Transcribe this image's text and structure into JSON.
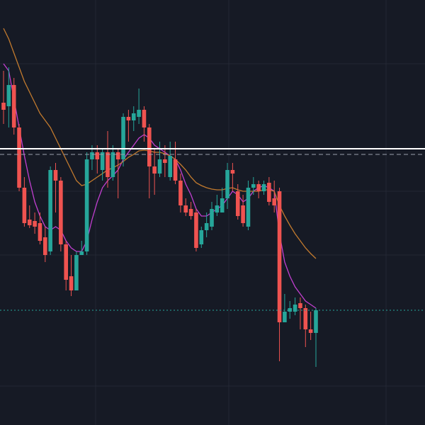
{
  "chart_data": {
    "type": "candlestick",
    "ylim": [
      0,
      600
    ],
    "up_color": "#26a69a",
    "down_color": "#ef5350",
    "open": [
      455,
      450,
      480,
      420,
      335,
      290,
      288,
      285,
      265,
      245,
      360,
      345,
      255,
      210,
      190,
      240,
      245,
      375,
      385,
      360,
      385,
      350,
      385,
      375,
      435,
      430,
      435,
      445,
      420,
      365,
      355,
      375,
      350,
      375,
      345,
      310,
      305,
      300,
      255,
      275,
      280,
      300,
      300,
      320,
      360,
      330,
      310,
      280,
      335,
      340,
      330,
      342,
      320,
      330,
      145,
      160,
      160,
      172,
      165,
      135,
      130
    ],
    "close": [
      445,
      480,
      420,
      335,
      285,
      282,
      280,
      260,
      240,
      360,
      345,
      255,
      205,
      190,
      240,
      245,
      375,
      385,
      375,
      385,
      350,
      385,
      375,
      435,
      430,
      440,
      445,
      420,
      365,
      355,
      375,
      370,
      380,
      345,
      310,
      300,
      295,
      250,
      275,
      285,
      305,
      310,
      320,
      360,
      355,
      295,
      285,
      335,
      340,
      330,
      340,
      315,
      310,
      145,
      160,
      165,
      170,
      165,
      135,
      130,
      162
    ],
    "high": [
      500,
      505,
      490,
      425,
      350,
      310,
      300,
      300,
      280,
      365,
      370,
      350,
      260,
      240,
      245,
      260,
      385,
      395,
      395,
      390,
      415,
      395,
      390,
      440,
      445,
      450,
      475,
      450,
      425,
      390,
      400,
      395,
      400,
      400,
      355,
      320,
      315,
      305,
      280,
      300,
      315,
      325,
      335,
      370,
      370,
      340,
      325,
      345,
      350,
      345,
      345,
      350,
      345,
      335,
      185,
      175,
      180,
      180,
      170,
      160,
      165
    ],
    "low": [
      425,
      420,
      410,
      330,
      280,
      278,
      270,
      255,
      230,
      240,
      300,
      245,
      190,
      182,
      190,
      240,
      240,
      360,
      355,
      345,
      335,
      345,
      320,
      365,
      400,
      415,
      425,
      400,
      320,
      325,
      350,
      350,
      345,
      340,
      300,
      295,
      290,
      245,
      250,
      265,
      275,
      295,
      300,
      305,
      330,
      290,
      280,
      275,
      325,
      320,
      325,
      310,
      300,
      90,
      145,
      150,
      155,
      135,
      110,
      120,
      82
    ],
    "series": [
      {
        "color": "#c13fd0",
        "values": [
          510,
          500,
          460,
          420,
          380,
          345,
          315,
          295,
          280,
          275,
          280,
          275,
          260,
          250,
          245,
          245,
          260,
          290,
          315,
          335,
          345,
          352,
          360,
          375,
          385,
          395,
          405,
          410,
          405,
          395,
          390,
          385,
          380,
          375,
          360,
          340,
          325,
          305,
          295,
          295,
          300,
          305,
          310,
          320,
          330,
          325,
          315,
          320,
          330,
          335,
          338,
          335,
          330,
          270,
          230,
          210,
          195,
          185,
          175,
          170,
          165
        ]
      },
      {
        "color": "#c27a2e",
        "values": [
          560,
          545,
          525,
          505,
          485,
          470,
          455,
          440,
          430,
          420,
          405,
          390,
          375,
          360,
          345,
          338,
          340,
          345,
          350,
          355,
          360,
          363,
          367,
          372,
          378,
          382,
          387,
          388,
          387,
          385,
          385,
          383,
          380,
          375,
          368,
          360,
          350,
          342,
          338,
          335,
          333,
          332,
          332,
          334,
          335,
          332,
          330,
          330,
          330,
          330,
          332,
          332,
          330,
          310,
          295,
          282,
          270,
          260,
          250,
          242,
          235
        ]
      }
    ],
    "price_lines": [
      {
        "value": 390,
        "color": "#ffffff",
        "style": "solid"
      },
      {
        "value": 382,
        "color": "#9aa0ad",
        "style": "dashed"
      },
      {
        "value": 162,
        "color": "#26a69a",
        "style": "dotted"
      }
    ]
  }
}
